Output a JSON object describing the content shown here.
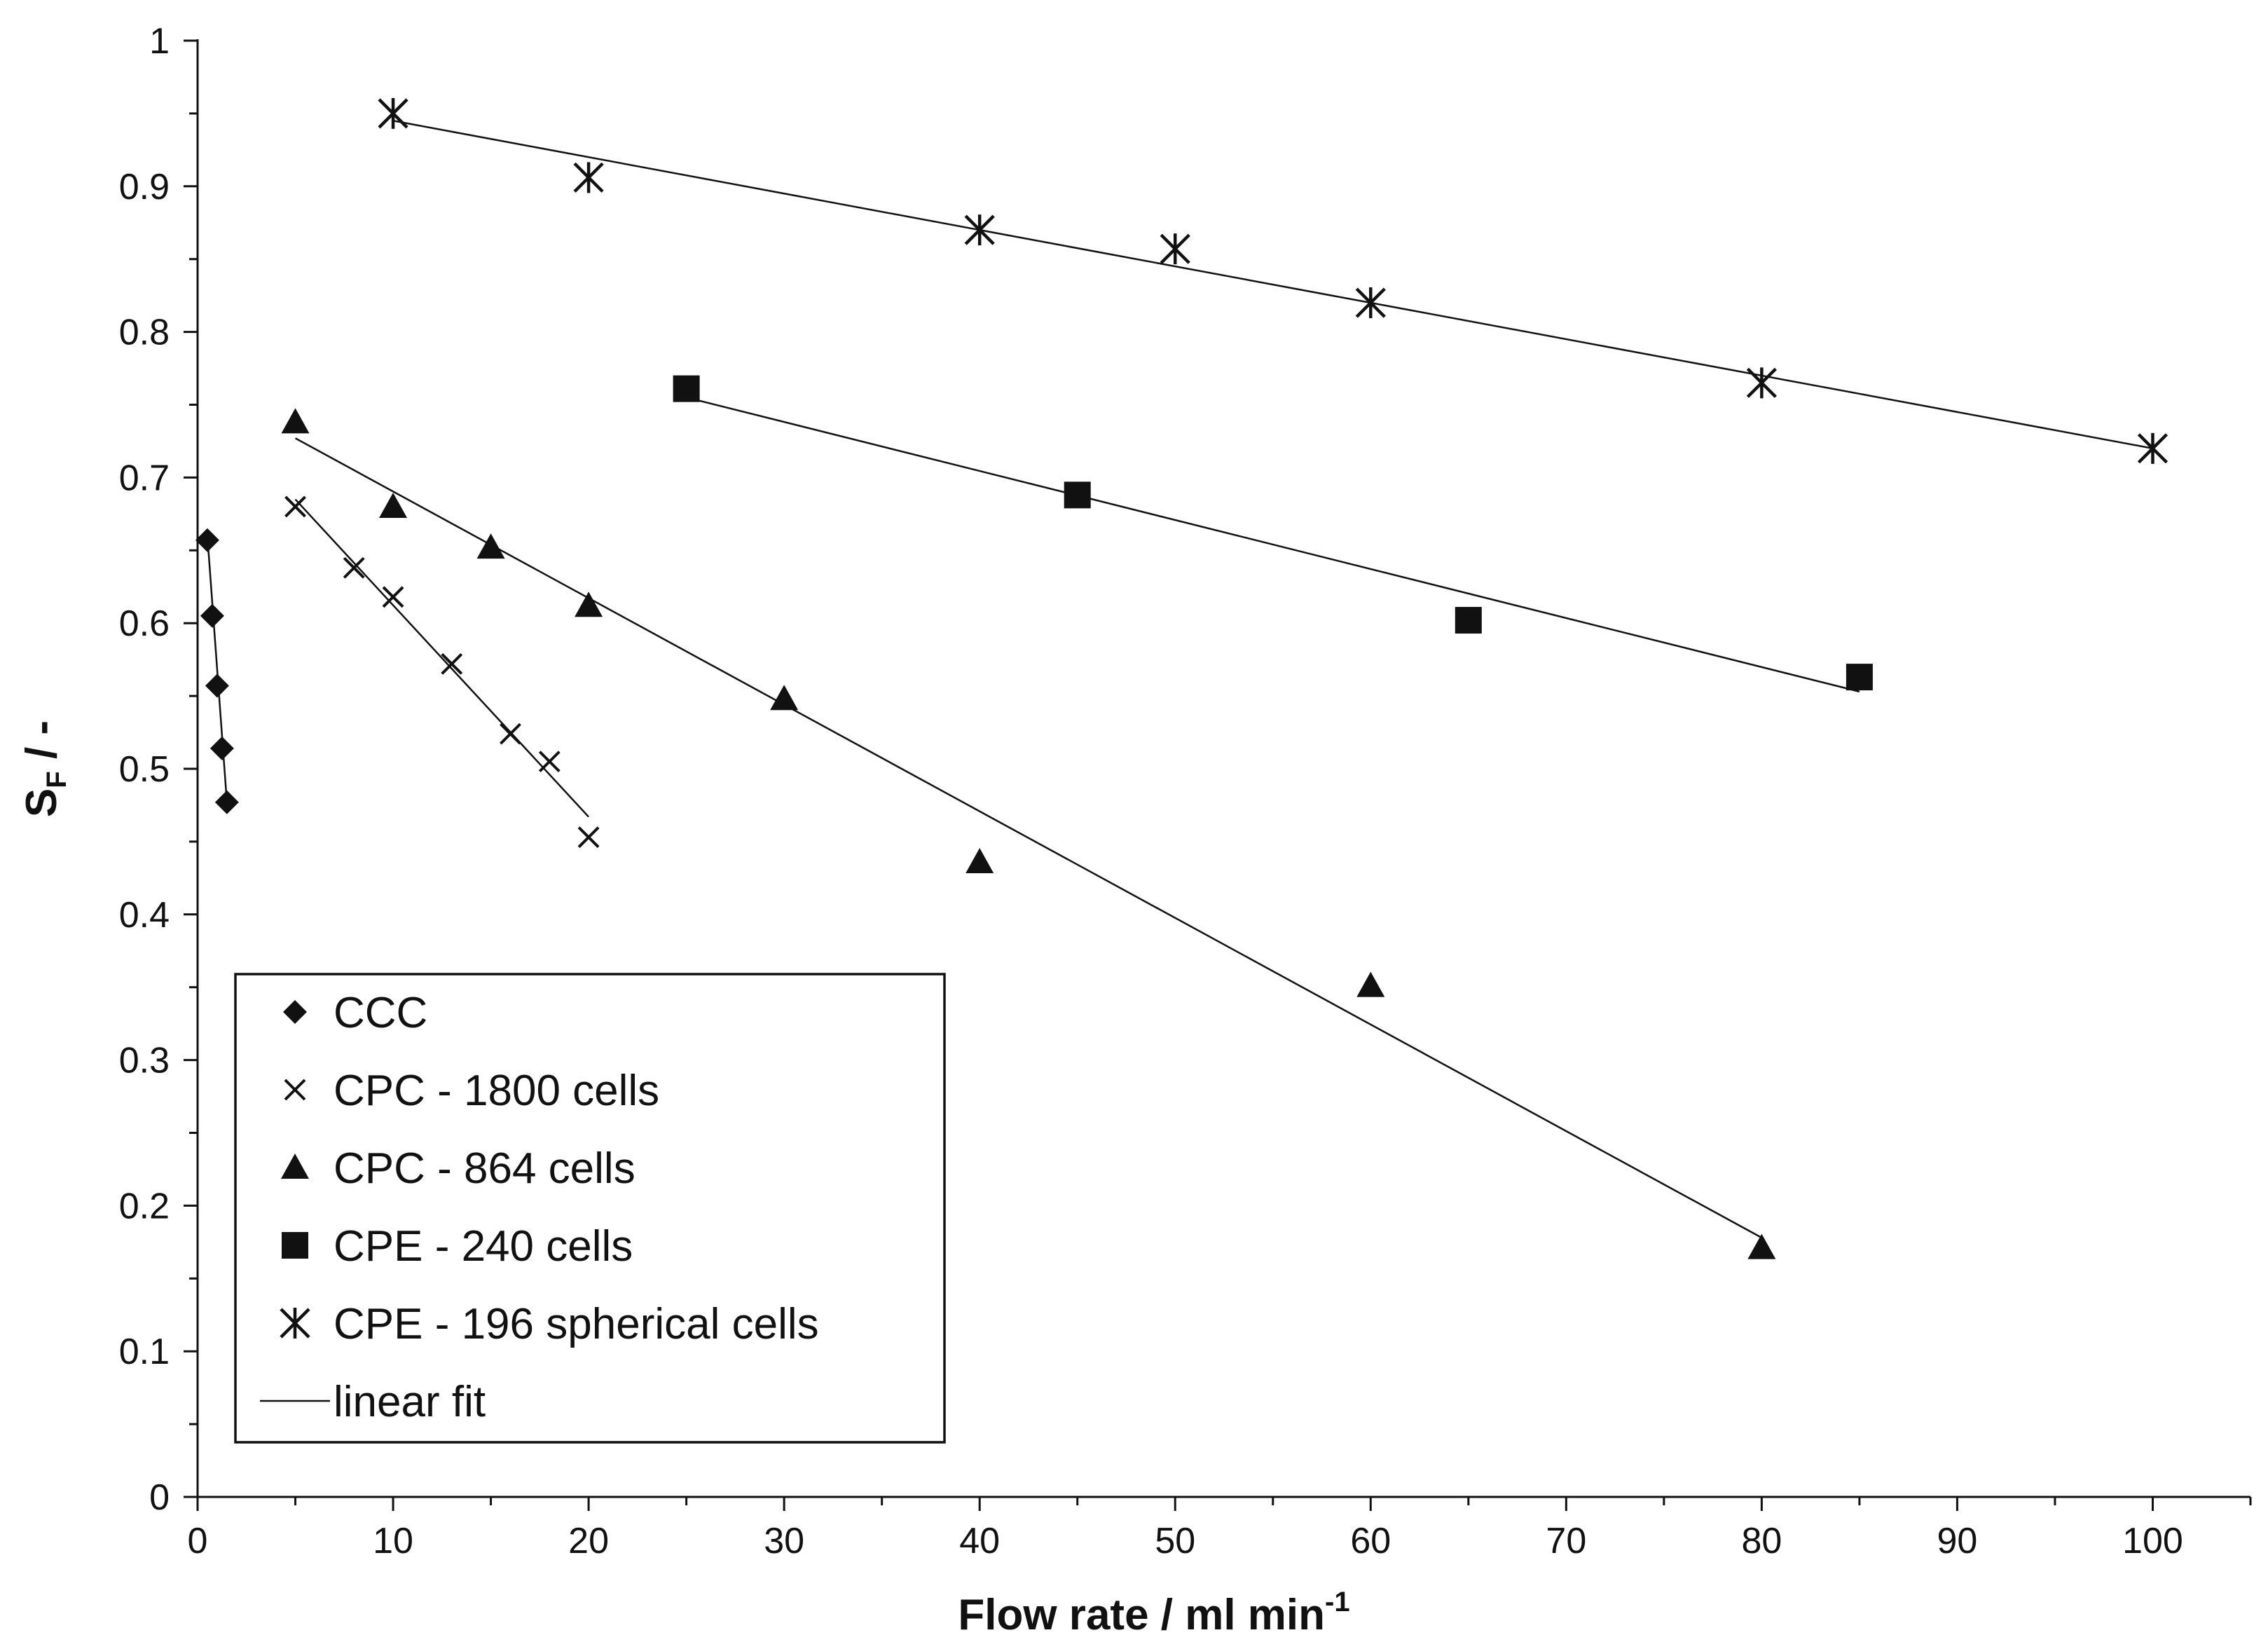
{
  "chart_data": {
    "type": "scatter",
    "title": "",
    "xlabel": "Flow rate / ml min",
    "xlabel_sup": "-1",
    "ylabel": "S",
    "ylabel_sub": "F",
    "ylabel_suffix": " / -",
    "xlim": [
      0,
      105
    ],
    "ylim": [
      0,
      1
    ],
    "x_ticks": [
      0,
      10,
      20,
      30,
      40,
      50,
      60,
      70,
      80,
      90,
      100
    ],
    "y_ticks": [
      0,
      0.1,
      0.2,
      0.3,
      0.4,
      0.5,
      0.6,
      0.7,
      0.8,
      0.9,
      1
    ],
    "x_tick_labels": [
      "0",
      "10",
      "20",
      "30",
      "40",
      "50",
      "60",
      "70",
      "80",
      "90",
      "100"
    ],
    "y_tick_labels": [
      "0",
      "0.1",
      "0.2",
      "0.3",
      "0.4",
      "0.5",
      "0.6",
      "0.7",
      "0.8",
      "0.9",
      "1"
    ],
    "grid": false,
    "legend_position": "bottom-left",
    "series": [
      {
        "name": "CCC",
        "marker": "diamond",
        "x": [
          0.5,
          0.75,
          1.0,
          1.25,
          1.5
        ],
        "y": [
          0.657,
          0.605,
          0.557,
          0.514,
          0.477
        ],
        "fit": {
          "x": [
            0.5,
            1.5
          ],
          "y": [
            0.66,
            0.477
          ]
        }
      },
      {
        "name": "CPC - 1800 cells",
        "marker": "x",
        "x": [
          5,
          8,
          10,
          13,
          16,
          18,
          20
        ],
        "y": [
          0.68,
          0.638,
          0.618,
          0.572,
          0.524,
          0.505,
          0.453
        ],
        "fit": {
          "x": [
            5,
            20
          ],
          "y": [
            0.685,
            0.467
          ]
        }
      },
      {
        "name": "CPC - 864 cells",
        "marker": "triangle",
        "x": [
          5,
          10,
          15,
          20,
          30,
          40,
          60,
          80
        ],
        "y": [
          0.738,
          0.68,
          0.652,
          0.612,
          0.548,
          0.436,
          0.351,
          0.171
        ],
        "fit": {
          "x": [
            5,
            80
          ],
          "y": [
            0.727,
            0.178
          ]
        }
      },
      {
        "name": "CPE - 240 cells",
        "marker": "square",
        "x": [
          25,
          45,
          65,
          85
        ],
        "y": [
          0.761,
          0.688,
          0.602,
          0.563
        ],
        "fit": {
          "x": [
            25,
            85
          ],
          "y": [
            0.755,
            0.553
          ]
        }
      },
      {
        "name": "CPE - 196 spherical cells",
        "marker": "asterisk",
        "x": [
          10,
          20,
          40,
          50,
          60,
          80,
          100
        ],
        "y": [
          0.95,
          0.906,
          0.87,
          0.857,
          0.82,
          0.765,
          0.72
        ],
        "fit": {
          "x": [
            10,
            100
          ],
          "y": [
            0.945,
            0.72
          ]
        }
      }
    ],
    "legend_entries": [
      {
        "label": "CCC",
        "marker": "diamond"
      },
      {
        "label": "CPC - 1800 cells",
        "marker": "x"
      },
      {
        "label": "CPC - 864 cells",
        "marker": "triangle"
      },
      {
        "label": "CPE - 240 cells",
        "marker": "square"
      },
      {
        "label": "CPE - 196 spherical cells",
        "marker": "asterisk"
      },
      {
        "label": "linear fit",
        "marker": "line"
      }
    ],
    "colors": {
      "ink": "#111111",
      "background": "#ffffff"
    }
  }
}
